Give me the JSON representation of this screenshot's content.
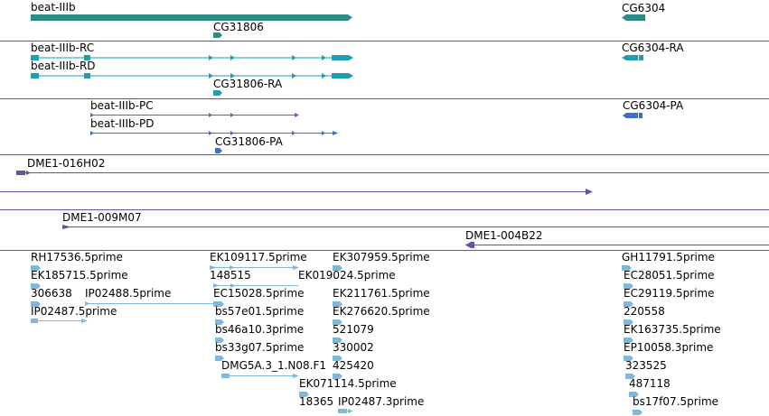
{
  "colors": {
    "gene": "#2e8b84",
    "transcript_rna": "#1a9fb3",
    "transcript_protein": "#3f6fc6",
    "clone": "#6a4ea8",
    "est": "#7fb8d8",
    "separator": "#6a4ea8"
  },
  "gene_track": {
    "gene1": "beat-IIIb",
    "gene2": "CG31806",
    "gene3": "CG6304"
  },
  "rna_track": {
    "rc": "beat-IIIb-RC",
    "rd": "beat-IIIb-RD",
    "cg31806_ra": "CG31806-RA",
    "cg6304_ra": "CG6304-RA"
  },
  "protein_track": {
    "pc": "beat-IIIb-PC",
    "pd": "beat-IIIb-PD",
    "cg31806_pa": "CG31806-PA",
    "cg6304_pa": "CG6304-PA"
  },
  "clone_track": {
    "clone1": "DME1-016H02",
    "clone2": "DME1-009M07",
    "clone3": "DME1-004B22"
  },
  "est_track": {
    "e01": "RH17536.5prime",
    "e02": "EK185715.5prime",
    "e03": "306638",
    "e04": "IP02488.5prime",
    "e05": "IP02487.5prime",
    "e06": "EK109117.5prime",
    "e07": "148515",
    "e08": "EK019024.5prime",
    "e09": "EC15028.5prime",
    "e10": "bs57e01.5prime",
    "e11": "bs46a10.3prime",
    "e12": "bs33g07.5prime",
    "e13": "DMG5A.3_1.N08.F1",
    "e14": "EK307959.5prime",
    "e15": "EK211761.5prime",
    "e16": "EK276620.5prime",
    "e17": "521079",
    "e18": "330002",
    "e19": "425420",
    "e20": "EK071114.5prime",
    "e21": "18365",
    "e22": "IP02487.3prime",
    "e23": "GH11791.5prime",
    "e24": "EC28051.5prime",
    "e25": "EC29119.5prime",
    "e26": "220558",
    "e27": "EK163735.5prime",
    "e28": "EP10058.3prime",
    "e29": "323525",
    "e30": "487118",
    "e31": "bs17f07.5prime"
  }
}
